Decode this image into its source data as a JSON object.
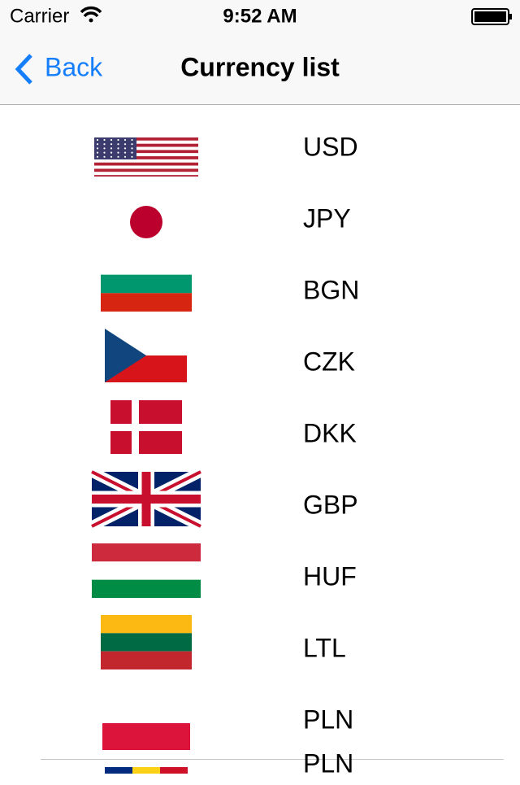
{
  "status_bar": {
    "carrier": "Carrier",
    "time": "9:52 AM"
  },
  "nav_bar": {
    "back": "Back",
    "title": "Currency list"
  },
  "list": {
    "rows": [
      {
        "code": "USD",
        "detail": "USD"
      },
      {
        "code": "JPY",
        "detail": "JPY"
      },
      {
        "code": "BGN",
        "detail": "BGN"
      },
      {
        "code": "CZK",
        "detail": "CZK"
      },
      {
        "code": "DKK",
        "detail": "DKK"
      },
      {
        "code": "GBP",
        "detail": "GBP"
      },
      {
        "code": "HUF",
        "detail": "HUF"
      },
      {
        "code": "LTL",
        "detail": "LTL"
      },
      {
        "code": "PLN",
        "detail": "PLN"
      }
    ]
  }
}
